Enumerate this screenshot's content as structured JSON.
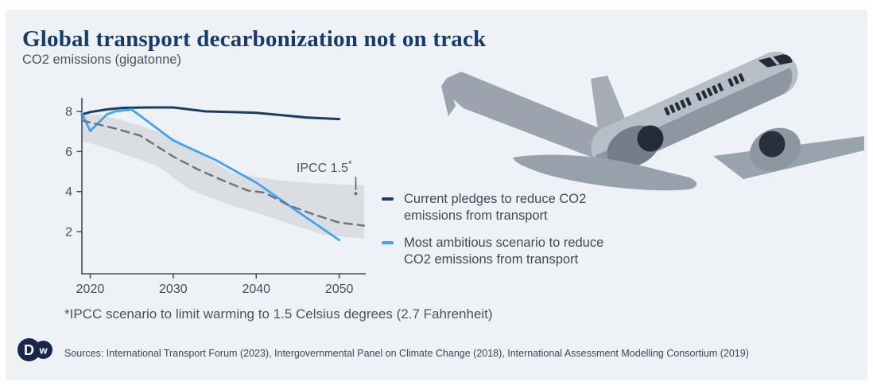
{
  "header": {
    "title": "Global transport decarbonization not on track",
    "subtitle": "CO2 emissions (gigatonne)"
  },
  "chart_data": {
    "type": "line",
    "title": "Global transport decarbonization not on track",
    "ylabel": "CO2 emissions (gigatonne)",
    "xlabel": "",
    "x_range": [
      2019,
      2053
    ],
    "y_range": [
      0,
      8.7
    ],
    "x_ticks": [
      2020,
      2030,
      2040,
      2050
    ],
    "y_ticks": [
      2,
      4,
      6,
      8
    ],
    "grid": false,
    "legend_position": "right",
    "band": {
      "name": "IPCC 1.5 scenario uncertainty range",
      "color": "#dadde2",
      "upper": [
        [
          2019,
          7.9
        ],
        [
          2021,
          7.85
        ],
        [
          2026,
          7.3
        ],
        [
          2030,
          6.7
        ],
        [
          2034,
          5.7
        ],
        [
          2037,
          4.95
        ],
        [
          2042,
          4.6
        ],
        [
          2047,
          4.42
        ],
        [
          2053,
          4.3
        ]
      ],
      "lower": [
        [
          2019,
          6.5
        ],
        [
          2021,
          6.3
        ],
        [
          2028,
          5.3
        ],
        [
          2032,
          4.1
        ],
        [
          2037,
          3.3
        ],
        [
          2040,
          2.95
        ],
        [
          2044,
          2.4
        ],
        [
          2048,
          1.85
        ],
        [
          2053,
          1.65
        ]
      ]
    },
    "series": [
      {
        "name": "Current pledges to reduce CO2 emissions from transport",
        "color": "#1c3d63",
        "style": "solid",
        "width": 3,
        "points": [
          [
            2019,
            7.85
          ],
          [
            2020,
            7.97
          ],
          [
            2022,
            8.1
          ],
          [
            2024,
            8.18
          ],
          [
            2027,
            8.2
          ],
          [
            2030,
            8.2
          ],
          [
            2032,
            8.1
          ],
          [
            2034,
            8.0
          ],
          [
            2037,
            7.97
          ],
          [
            2040,
            7.93
          ],
          [
            2043,
            7.82
          ],
          [
            2046,
            7.7
          ],
          [
            2050,
            7.62
          ]
        ]
      },
      {
        "name": "Most ambitious scenario to reduce CO2 emissions from transport",
        "color": "#41a2ee",
        "style": "solid",
        "width": 2.75,
        "points": [
          [
            2019,
            7.9
          ],
          [
            2020,
            7.02
          ],
          [
            2022,
            7.85
          ],
          [
            2023,
            8.0
          ],
          [
            2025,
            8.1
          ],
          [
            2030,
            6.55
          ],
          [
            2035,
            5.6
          ],
          [
            2040,
            4.45
          ],
          [
            2045,
            3.0
          ],
          [
            2050,
            1.58
          ]
        ]
      },
      {
        "name": "IPCC 1.5 scenario (median)",
        "color": "#6e757d",
        "style": "dashed",
        "width": 2.5,
        "points": [
          [
            2019,
            7.55
          ],
          [
            2020,
            7.45
          ],
          [
            2023,
            7.15
          ],
          [
            2026,
            6.8
          ],
          [
            2030,
            5.75
          ],
          [
            2033,
            5.1
          ],
          [
            2036,
            4.55
          ],
          [
            2039,
            4.05
          ],
          [
            2041,
            3.95
          ],
          [
            2044,
            3.3
          ],
          [
            2047,
            2.85
          ],
          [
            2050,
            2.45
          ],
          [
            2053,
            2.3
          ]
        ]
      }
    ],
    "annotation": {
      "label": "IPCC 1.5",
      "superscript": "*",
      "x": 2052,
      "y": 3.9
    }
  },
  "legend": {
    "items": [
      {
        "label": "Current pledges to reduce CO2 emissions from transport",
        "color": "#1c3d63"
      },
      {
        "label": "Most ambitious scenario to reduce CO2 emissions from transport",
        "color": "#41a2ee"
      }
    ]
  },
  "footnote": {
    "text": "*IPCC scenario to limit warming to 1.5 Celsius degrees (2.7 Fahrenheit)"
  },
  "footer": {
    "logo_alt": "DW",
    "sources": "Sources: International Transport Forum (2023), Intergovernmental Panel on Climate Change (2018), International Assessment Modelling Consortium (2019)"
  },
  "colors": {
    "card_background": "#eef1f5",
    "title": "#173a6d",
    "body_text": "#4a545e",
    "axis": "#454f59",
    "band": "#dadde2",
    "navy_line": "#1c3d63",
    "blue_line": "#41a2ee",
    "dashed_line": "#6e757d",
    "logo_navy": "#16274a"
  }
}
